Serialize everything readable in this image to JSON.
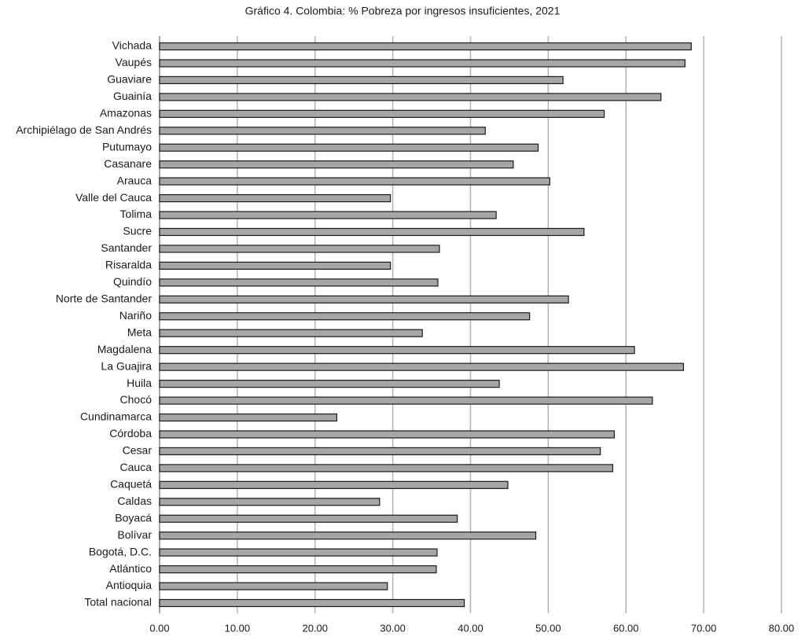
{
  "chart_data": {
    "type": "bar",
    "title": "Gráfico 4. Colombia: % Pobreza por ingresos insuficientes, 2021",
    "categories": [
      "Vichada",
      "Vaupés",
      "Guaviare",
      "Guainía",
      "Amazonas",
      "Archipiélago de San Andrés",
      "Putumayo",
      "Casanare",
      "Arauca",
      "Valle del Cauca",
      "Tolima",
      "Sucre",
      "Santander",
      "Risaralda",
      "Quindío",
      "Norte de Santander",
      "Nariño",
      "Meta",
      "Magdalena",
      "La Guajira",
      "Huila",
      "Chocó",
      "Cundinamarca",
      "Córdoba",
      "Cesar",
      "Cauca",
      "Caquetá",
      "Caldas",
      "Boyacá",
      "Bolívar",
      "Bogotá, D.C.",
      "Atlántico",
      "Antioquia",
      "Total nacional"
    ],
    "values": [
      68.4,
      67.6,
      51.9,
      64.5,
      57.2,
      41.9,
      48.7,
      45.5,
      50.2,
      29.7,
      43.3,
      54.6,
      36.0,
      29.7,
      35.8,
      52.6,
      47.6,
      33.8,
      61.1,
      67.4,
      43.7,
      63.4,
      22.8,
      58.5,
      56.7,
      58.3,
      44.8,
      28.3,
      38.3,
      48.4,
      35.7,
      35.6,
      29.3,
      39.2
    ],
    "color": "#a6a6a6",
    "xlim": [
      0,
      80
    ],
    "xticks": [
      {
        "value": 0,
        "label": "0.00"
      },
      {
        "value": 10,
        "label": "10.00"
      },
      {
        "value": 20,
        "label": "20.00"
      },
      {
        "value": 30,
        "label": "30.00"
      },
      {
        "value": 40,
        "label": "40.00"
      },
      {
        "value": 50,
        "label": "50.00"
      },
      {
        "value": 60,
        "label": "60.00"
      },
      {
        "value": 70,
        "label": "70.00"
      },
      {
        "value": 80,
        "label": "80.00"
      }
    ],
    "grid": true
  }
}
